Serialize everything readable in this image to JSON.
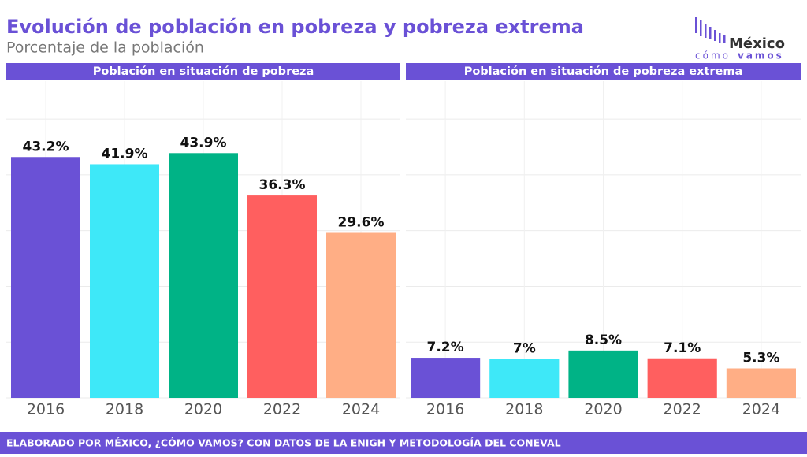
{
  "header": {
    "title": "Evolución de población en pobreza y pobreza extrema",
    "subtitle": "Porcentaje de la población"
  },
  "logo": {
    "name": "México",
    "tagline_1": "cómo",
    "tagline_2": "vamos"
  },
  "footer": "ELABORADO POR MÉXICO, ¿CÓMO VAMOS? CON DATOS DE LA ENIGH Y METODOLOGÍA DEL CONEVAL",
  "chart_data": [
    {
      "type": "bar",
      "title": "Población en situación de pobreza",
      "categories": [
        "2016",
        "2018",
        "2020",
        "2022",
        "2024"
      ],
      "values": [
        43.2,
        41.9,
        43.9,
        36.3,
        29.6
      ],
      "value_labels": [
        "43.2%",
        "41.9%",
        "43.9%",
        "36.3%",
        "29.6%"
      ],
      "colors": [
        "#6a51d6",
        "#3ee8f8",
        "#00b386",
        "#ff5f5f",
        "#ffae85"
      ],
      "ylim": [
        0,
        56.8
      ],
      "yticks": [
        0,
        10,
        20,
        30,
        40,
        50
      ],
      "grid": true
    },
    {
      "type": "bar",
      "title": "Población en situación de pobreza extrema",
      "categories": [
        "2016",
        "2018",
        "2020",
        "2022",
        "2024"
      ],
      "values": [
        7.2,
        7,
        8.5,
        7.1,
        5.3
      ],
      "value_labels": [
        "7.2%",
        "7%",
        "8.5%",
        "7.1%",
        "5.3%"
      ],
      "colors": [
        "#6a51d6",
        "#3ee8f8",
        "#00b386",
        "#ff5f5f",
        "#ffae85"
      ],
      "ylim": [
        0,
        56.8
      ],
      "yticks": [
        0,
        10,
        20,
        30,
        40,
        50
      ],
      "grid": true
    }
  ]
}
